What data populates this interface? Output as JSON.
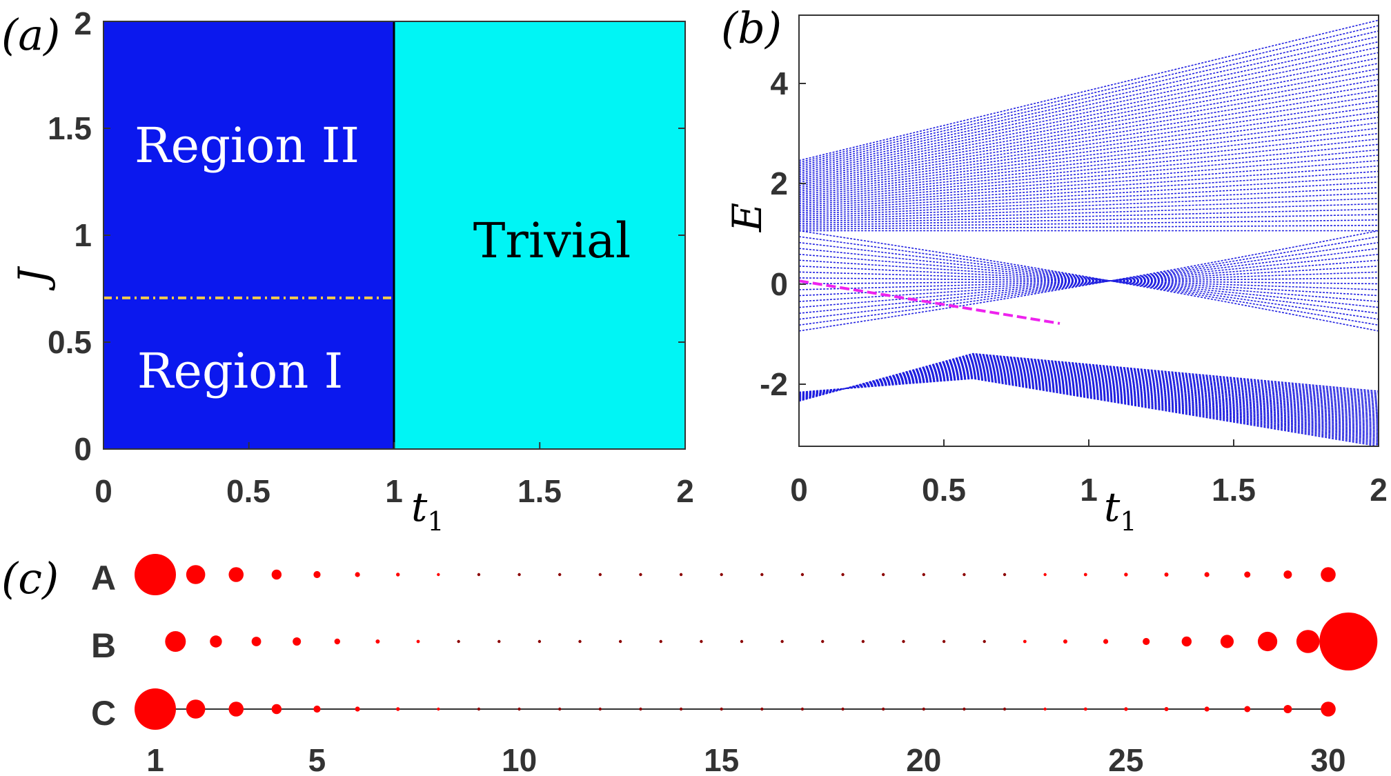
{
  "colors": {
    "region_dark": "#0b18ee",
    "region_light": "#00f5f5",
    "boundary_dashed": "#f2c94c",
    "spectrum_line": "#2020e0",
    "edge_state": "#ee22ee",
    "dot": "#ff0000",
    "dot_small": "#8b0000",
    "axis": "#333333"
  },
  "panel_a": {
    "label_open": "(",
    "label_var": "a",
    "label_close": ")",
    "x_tick_labels": [
      "0",
      "0.5",
      "1",
      "1.5",
      "2"
    ],
    "y_tick_labels": [
      "0",
      "0.5",
      "1",
      "1.5",
      "2"
    ],
    "xlabel_var": "t",
    "xlabel_sub": "1",
    "ylabel": "J",
    "region_II_label": "Region II",
    "region_I_label": "Region I",
    "trivial_label": "Trivial"
  },
  "panel_b": {
    "label_open": "(",
    "label_var": "b",
    "label_close": ")",
    "x_tick_labels": [
      "0",
      "0.5",
      "1",
      "1.5",
      "2"
    ],
    "y_tick_labels": [
      "-2",
      "0",
      "2",
      "4"
    ],
    "xlabel_var": "t",
    "xlabel_sub": "1",
    "ylabel": "E"
  },
  "panel_c": {
    "label_open": "(",
    "label_var": "c",
    "label_close": ")",
    "row_labels": [
      "A",
      "B",
      "C"
    ],
    "x_tick_labels": [
      "1",
      "5",
      "10",
      "15",
      "20",
      "25",
      "30"
    ]
  },
  "chart_data": [
    {
      "panel": "a",
      "type": "heatmap",
      "xlim": [
        0,
        2
      ],
      "ylim": [
        0,
        2
      ],
      "x_ticks": [
        0,
        0.5,
        1,
        1.5,
        2
      ],
      "y_ticks": [
        0,
        0.5,
        1,
        1.5,
        2
      ],
      "regions": [
        {
          "name": "Region I",
          "t1_range": [
            0,
            1
          ],
          "J_range": [
            0,
            0.707
          ]
        },
        {
          "name": "Region II",
          "t1_range": [
            0,
            1
          ],
          "J_range": [
            0.707,
            2
          ]
        },
        {
          "name": "Trivial",
          "t1_range": [
            1,
            2
          ],
          "J_range": [
            0,
            2
          ]
        }
      ],
      "boundary_dashed_J": 0.707,
      "phase_boundary_t1": 1
    },
    {
      "panel": "b",
      "type": "line",
      "xlim": [
        0,
        2
      ],
      "ylim": [
        -3.3,
        5.3
      ],
      "x_ticks": [
        0,
        0.5,
        1,
        1.5,
        2
      ],
      "y_ticks": [
        -2,
        0,
        2,
        4
      ],
      "band_groups": [
        {
          "name": "upper",
          "count": 40,
          "start_range": [
            1.0,
            2.4
          ],
          "end_range": [
            1.0,
            5.2
          ]
        },
        {
          "name": "middle",
          "count": 18,
          "start_range": [
            -1.0,
            1.0
          ],
          "end_range": [
            -1.0,
            1.0
          ]
        },
        {
          "name": "lower",
          "count": 40,
          "start": -2.4,
          "mid": -1.7,
          "end_range": [
            -3.3,
            -2.2
          ]
        }
      ],
      "edge_state": {
        "x": [
          0,
          0.9
        ],
        "y": [
          0,
          -0.85
        ]
      }
    },
    {
      "panel": "c",
      "type": "scatter",
      "xlim": [
        1,
        31
      ],
      "x_ticks": [
        1,
        5,
        10,
        15,
        20,
        25,
        30
      ],
      "rows": [
        {
          "name": "A",
          "x": [
            1,
            2,
            3,
            4,
            5,
            6,
            7,
            8,
            9,
            10,
            11,
            12,
            13,
            14,
            15,
            16,
            17,
            18,
            19,
            20,
            21,
            22,
            23,
            24,
            25,
            26,
            27,
            28,
            29,
            30
          ],
          "size": [
            1.0,
            0.46,
            0.36,
            0.24,
            0.17,
            0.12,
            0.09,
            0.07,
            0.06,
            0.05,
            0.05,
            0.04,
            0.04,
            0.04,
            0.04,
            0.04,
            0.04,
            0.04,
            0.04,
            0.05,
            0.05,
            0.06,
            0.07,
            0.08,
            0.09,
            0.1,
            0.12,
            0.15,
            0.2,
            0.36
          ]
        },
        {
          "name": "B",
          "x": [
            1.5,
            2.5,
            3.5,
            4.5,
            5.5,
            6.5,
            7.5,
            8.5,
            9.5,
            10.5,
            11.5,
            12.5,
            13.5,
            14.5,
            15.5,
            16.5,
            17.5,
            18.5,
            19.5,
            20.5,
            21.5,
            22.5,
            23.5,
            24.5,
            25.5,
            26.5,
            27.5,
            28.5,
            29.5,
            30.5
          ],
          "size": [
            0.5,
            0.29,
            0.23,
            0.2,
            0.14,
            0.1,
            0.08,
            0.06,
            0.05,
            0.05,
            0.04,
            0.04,
            0.04,
            0.04,
            0.04,
            0.04,
            0.04,
            0.04,
            0.04,
            0.05,
            0.06,
            0.08,
            0.1,
            0.12,
            0.17,
            0.24,
            0.32,
            0.47,
            0.56,
            1.4
          ]
        },
        {
          "name": "C",
          "x": [
            1,
            2,
            3,
            4,
            5,
            6,
            7,
            8,
            9,
            10,
            11,
            12,
            13,
            14,
            15,
            16,
            17,
            18,
            19,
            20,
            21,
            22,
            23,
            24,
            25,
            26,
            27,
            28,
            29,
            30
          ],
          "size": [
            1.0,
            0.46,
            0.36,
            0.24,
            0.17,
            0.12,
            0.09,
            0.07,
            0.06,
            0.05,
            0.05,
            0.04,
            0.04,
            0.04,
            0.04,
            0.04,
            0.04,
            0.04,
            0.04,
            0.05,
            0.05,
            0.06,
            0.07,
            0.08,
            0.09,
            0.1,
            0.12,
            0.15,
            0.2,
            0.36
          ],
          "connecting_line": true
        }
      ]
    }
  ]
}
